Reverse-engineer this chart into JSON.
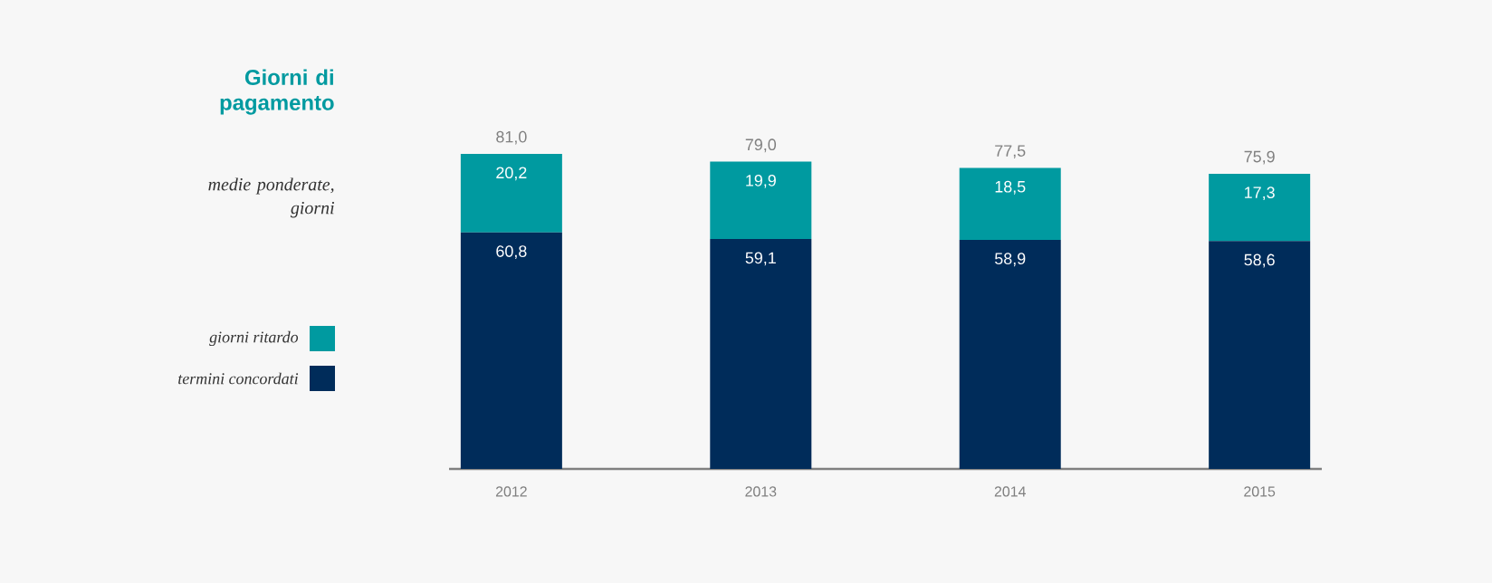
{
  "chart_data": {
    "type": "bar",
    "stacked": true,
    "title": "Giorni di pagamento",
    "subtitle": "medie ponderate, giorni",
    "categories": [
      "2012",
      "2013",
      "2014",
      "2015"
    ],
    "series": [
      {
        "name": "termini concordati",
        "color": "#002c5a",
        "values": [
          60.8,
          59.1,
          58.9,
          58.6
        ],
        "value_labels": [
          "60,8",
          "59,1",
          "58,9",
          "58,6"
        ]
      },
      {
        "name": "giorni ritardo",
        "color": "#009aa0",
        "values": [
          20.2,
          19.9,
          18.5,
          17.3
        ],
        "value_labels": [
          "20,2",
          "19,9",
          "18,5",
          "17,3"
        ]
      }
    ],
    "totals": [
      "81,0",
      "79,0",
      "77,5",
      "75,9"
    ],
    "legend": "left"
  }
}
